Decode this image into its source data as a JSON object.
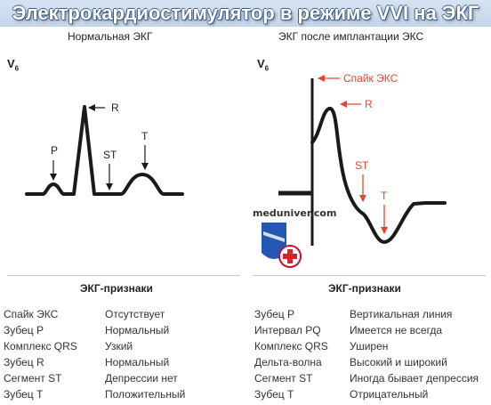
{
  "header": {
    "title": "Электрокардиостимулятор в режиме VVI на ЭКГ"
  },
  "left": {
    "title": "Нормальная ЭКГ",
    "lead": "V",
    "lead_sub": "6",
    "labels": {
      "p": "P",
      "r": "R",
      "st": "ST",
      "t": "T"
    }
  },
  "right": {
    "title": "ЭКГ после имплантации ЭКС",
    "lead": "V",
    "lead_sub": "6",
    "labels": {
      "spike": "Спайк ЭКС",
      "r": "R",
      "st": "ST",
      "t": "T"
    },
    "watermark": "meduniver.com"
  },
  "left_signs": {
    "heading": "ЭКГ-признаки",
    "rows": [
      {
        "name": "Спайк ЭКС",
        "value": "Отсутствует"
      },
      {
        "name": "Зубец P",
        "value": "Нормальный"
      },
      {
        "name": "Комплекс QRS",
        "value": "Узкий"
      },
      {
        "name": "Зубец R",
        "value": "Нормальный"
      },
      {
        "name": "Сегмент ST",
        "value": "Депрессии нет"
      },
      {
        "name": "Зубец T",
        "value": "Положительный"
      }
    ]
  },
  "right_signs": {
    "heading": "ЭКГ-признаки",
    "rows": [
      {
        "name": "Зубец P",
        "value": "Вертикальная линия"
      },
      {
        "name": "Интервал PQ",
        "value": "Имеется не всегда"
      },
      {
        "name": "Комплекс QRS",
        "value": "Уширен"
      },
      {
        "name": "Дельта-волна",
        "value": "Высокий и широкий"
      },
      {
        "name": "Сегмент ST",
        "value": "Иногда бывает депрессия"
      },
      {
        "name": "Зубец T",
        "value": "Отрицательный"
      }
    ]
  },
  "colors": {
    "accent": "#e8442a",
    "banner": "#c3d5ea",
    "trace": "#1a1a1a"
  }
}
